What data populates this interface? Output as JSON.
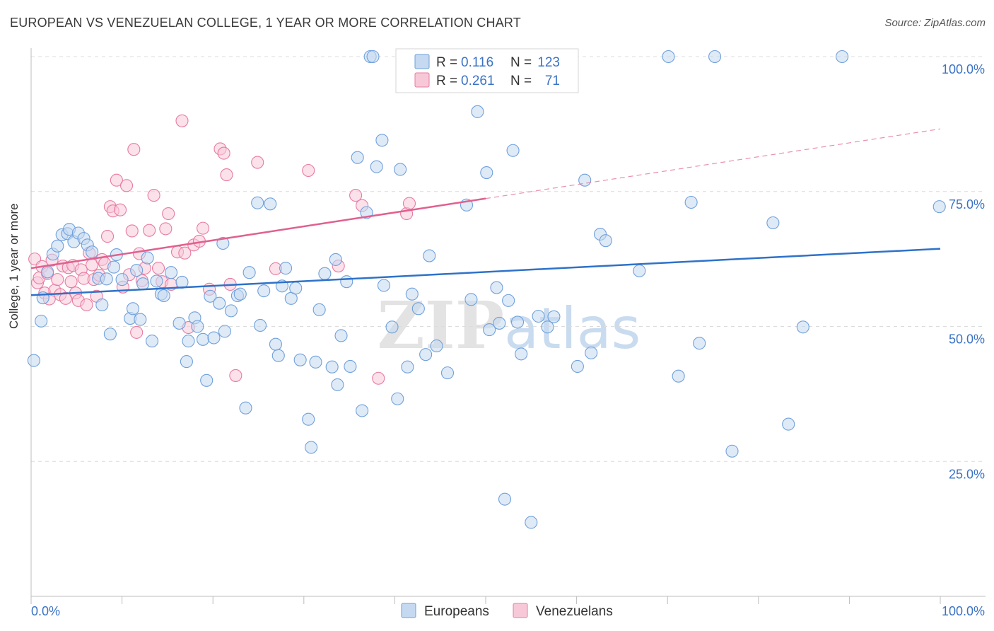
{
  "header": {
    "title": "EUROPEAN VS VENEZUELAN COLLEGE, 1 YEAR OR MORE CORRELATION CHART",
    "source": "Source: ZipAtlas.com"
  },
  "colors": {
    "europeans": "#6fa0dc",
    "europeans_fill": "#c5d9f1",
    "venezuelans": "#e87ba0",
    "venezuelans_fill": "#f7c9d8",
    "blue_line": "#2e72c9",
    "pink_line": "#e0608e",
    "tick_text": "#3b73c4",
    "grid": "#dcdcdc"
  },
  "chart_data": {
    "type": "scatter",
    "title": "EUROPEAN VS VENEZUELAN COLLEGE, 1 YEAR OR MORE CORRELATION CHART",
    "xlabel": "",
    "ylabel": "College, 1 year or more",
    "xlim": [
      0,
      100
    ],
    "ylim": [
      0,
      100
    ],
    "x_tick_labels": [
      "0.0%",
      "100.0%"
    ],
    "y_ticks": [
      {
        "value": 25,
        "label": "25.0%"
      },
      {
        "value": 50,
        "label": "50.0%"
      },
      {
        "value": 75,
        "label": "75.0%"
      },
      {
        "value": 100,
        "label": "100.0%"
      }
    ],
    "watermark": {
      "bold": "ZIP",
      "light": "atlas"
    },
    "legend": {
      "position": "top-center",
      "entries": [
        {
          "r_label": "R =",
          "r": "0.116",
          "n_label": "N =",
          "n": "123"
        },
        {
          "r_label": "R =",
          "r": "0.261",
          "n_label": "N =",
          "n": "71"
        }
      ]
    },
    "bottom_legend": [
      "Europeans",
      "Venezuelans"
    ],
    "series": [
      {
        "name": "Europeans",
        "trend": {
          "x": [
            0,
            100
          ],
          "y": [
            55.8,
            64.4
          ],
          "style": "solid"
        },
        "points": [
          [
            0.3,
            43.7
          ],
          [
            1.1,
            51.0
          ],
          [
            1.3,
            55.3
          ],
          [
            1.8,
            60.1
          ],
          [
            2.4,
            63.4
          ],
          [
            2.9,
            64.9
          ],
          [
            3.4,
            67.0
          ],
          [
            4.0,
            67.2
          ],
          [
            4.2,
            68.0
          ],
          [
            4.7,
            65.7
          ],
          [
            5.2,
            67.3
          ],
          [
            5.8,
            66.3
          ],
          [
            6.2,
            65.1
          ],
          [
            6.7,
            63.8
          ],
          [
            7.4,
            58.9
          ],
          [
            7.8,
            54.0
          ],
          [
            8.3,
            58.8
          ],
          [
            9.1,
            61.0
          ],
          [
            9.4,
            63.3
          ],
          [
            10.0,
            58.7
          ],
          [
            10.9,
            51.5
          ],
          [
            11.2,
            53.3
          ],
          [
            11.6,
            60.4
          ],
          [
            12.3,
            57.9
          ],
          [
            12.8,
            62.7
          ],
          [
            13.3,
            47.3
          ],
          [
            13.8,
            58.4
          ],
          [
            14.3,
            56.0
          ],
          [
            14.6,
            55.7
          ],
          [
            15.4,
            60.0
          ],
          [
            16.3,
            50.6
          ],
          [
            16.6,
            58.2
          ],
          [
            17.1,
            43.5
          ],
          [
            17.3,
            47.3
          ],
          [
            18.0,
            51.6
          ],
          [
            18.3,
            50.0
          ],
          [
            18.9,
            47.6
          ],
          [
            19.3,
            40.0
          ],
          [
            19.7,
            55.6
          ],
          [
            20.1,
            47.9
          ],
          [
            20.7,
            54.3
          ],
          [
            21.1,
            65.4
          ],
          [
            21.3,
            49.1
          ],
          [
            22.0,
            52.9
          ],
          [
            22.7,
            55.7
          ],
          [
            23.0,
            56.0
          ],
          [
            23.6,
            34.9
          ],
          [
            24.0,
            60.0
          ],
          [
            24.9,
            72.9
          ],
          [
            25.2,
            50.2
          ],
          [
            25.6,
            56.6
          ],
          [
            26.3,
            72.7
          ],
          [
            26.9,
            46.7
          ],
          [
            27.2,
            44.6
          ],
          [
            27.6,
            57.5
          ],
          [
            28.0,
            60.8
          ],
          [
            28.6,
            55.2
          ],
          [
            29.1,
            57.1
          ],
          [
            29.6,
            43.8
          ],
          [
            30.5,
            32.8
          ],
          [
            30.8,
            27.6
          ],
          [
            31.3,
            43.4
          ],
          [
            31.7,
            53.1
          ],
          [
            32.3,
            59.8
          ],
          [
            33.1,
            42.5
          ],
          [
            33.7,
            39.2
          ],
          [
            34.1,
            48.3
          ],
          [
            34.7,
            58.3
          ],
          [
            35.1,
            42.6
          ],
          [
            35.9,
            81.3
          ],
          [
            36.4,
            34.4
          ],
          [
            36.9,
            71.1
          ],
          [
            37.3,
            100.0
          ],
          [
            37.6,
            100.0
          ],
          [
            38.0,
            79.6
          ],
          [
            38.6,
            84.5
          ],
          [
            39.7,
            49.9
          ],
          [
            40.3,
            36.6
          ],
          [
            40.6,
            79.1
          ],
          [
            41.4,
            42.5
          ],
          [
            41.9,
            56.0
          ],
          [
            42.6,
            53.3
          ],
          [
            43.4,
            44.8
          ],
          [
            43.8,
            63.1
          ],
          [
            44.6,
            46.4
          ],
          [
            47.9,
            72.5
          ],
          [
            49.1,
            89.8
          ],
          [
            50.1,
            78.5
          ],
          [
            50.4,
            49.4
          ],
          [
            51.2,
            57.2
          ],
          [
            51.5,
            50.6
          ],
          [
            52.1,
            18.0
          ],
          [
            53.0,
            82.6
          ],
          [
            53.5,
            50.8
          ],
          [
            53.9,
            44.9
          ],
          [
            55.0,
            13.7
          ],
          [
            55.8,
            51.9
          ],
          [
            56.8,
            49.9
          ],
          [
            57.5,
            51.8
          ],
          [
            60.1,
            42.6
          ],
          [
            60.9,
            77.1
          ],
          [
            61.6,
            45.1
          ],
          [
            62.6,
            67.1
          ],
          [
            63.2,
            65.9
          ],
          [
            66.9,
            60.3
          ],
          [
            70.1,
            100.0
          ],
          [
            71.2,
            40.8
          ],
          [
            72.6,
            73.0
          ],
          [
            73.5,
            46.9
          ],
          [
            75.2,
            100.0
          ],
          [
            77.1,
            26.9
          ],
          [
            81.6,
            69.2
          ],
          [
            83.3,
            31.9
          ],
          [
            84.9,
            49.9
          ],
          [
            89.2,
            100.0
          ],
          [
            99.9,
            72.2
          ],
          [
            52.5,
            54.8
          ],
          [
            45.8,
            41.4
          ],
          [
            48.4,
            55.0
          ],
          [
            38.8,
            57.6
          ],
          [
            12.0,
            51.3
          ],
          [
            33.5,
            62.4
          ],
          [
            8.7,
            48.6
          ]
        ]
      },
      {
        "name": "Venezuelans",
        "trend": {
          "x": [
            0,
            50
          ],
          "y": [
            60.8,
            73.7
          ],
          "style": "solid",
          "extension": {
            "x": [
              50,
              100
            ],
            "y": [
              73.7,
              86.6
            ],
            "style": "dashed"
          }
        },
        "points": [
          [
            0.4,
            62.5
          ],
          [
            0.7,
            58.1
          ],
          [
            0.9,
            59.0
          ],
          [
            1.2,
            61.1
          ],
          [
            1.5,
            56.2
          ],
          [
            1.8,
            59.8
          ],
          [
            2.0,
            55.1
          ],
          [
            2.3,
            62.3
          ],
          [
            2.6,
            56.7
          ],
          [
            2.9,
            58.7
          ],
          [
            3.2,
            55.9
          ],
          [
            3.5,
            61.2
          ],
          [
            3.8,
            55.2
          ],
          [
            4.1,
            60.9
          ],
          [
            4.4,
            58.3
          ],
          [
            4.6,
            61.3
          ],
          [
            4.9,
            56.2
          ],
          [
            5.2,
            54.8
          ],
          [
            5.5,
            60.5
          ],
          [
            5.8,
            58.9
          ],
          [
            6.1,
            54.0
          ],
          [
            6.4,
            63.6
          ],
          [
            6.7,
            61.4
          ],
          [
            6.9,
            58.7
          ],
          [
            7.2,
            55.6
          ],
          [
            7.5,
            59.5
          ],
          [
            7.8,
            62.4
          ],
          [
            8.1,
            61.7
          ],
          [
            8.4,
            66.7
          ],
          [
            8.7,
            72.2
          ],
          [
            9.0,
            71.4
          ],
          [
            9.4,
            77.1
          ],
          [
            9.8,
            71.6
          ],
          [
            10.1,
            57.3
          ],
          [
            10.5,
            76.1
          ],
          [
            10.8,
            59.6
          ],
          [
            11.1,
            67.7
          ],
          [
            11.3,
            82.8
          ],
          [
            11.6,
            48.9
          ],
          [
            11.9,
            63.5
          ],
          [
            12.2,
            58.5
          ],
          [
            12.5,
            60.8
          ],
          [
            13.0,
            67.8
          ],
          [
            13.5,
            74.3
          ],
          [
            14.0,
            60.8
          ],
          [
            14.4,
            58.3
          ],
          [
            14.8,
            68.1
          ],
          [
            15.1,
            70.9
          ],
          [
            15.4,
            57.8
          ],
          [
            16.1,
            63.8
          ],
          [
            16.6,
            88.1
          ],
          [
            16.9,
            63.6
          ],
          [
            17.3,
            49.8
          ],
          [
            17.9,
            65.1
          ],
          [
            18.5,
            65.8
          ],
          [
            18.9,
            68.2
          ],
          [
            19.6,
            56.9
          ],
          [
            20.8,
            82.9
          ],
          [
            21.2,
            82.1
          ],
          [
            21.5,
            78.1
          ],
          [
            21.9,
            57.8
          ],
          [
            22.5,
            40.9
          ],
          [
            24.9,
            80.4
          ],
          [
            26.9,
            60.7
          ],
          [
            30.5,
            78.9
          ],
          [
            35.7,
            74.3
          ],
          [
            36.4,
            72.4
          ],
          [
            38.2,
            40.4
          ],
          [
            41.3,
            70.9
          ],
          [
            41.6,
            72.8
          ],
          [
            33.8,
            61.2
          ]
        ]
      }
    ]
  }
}
